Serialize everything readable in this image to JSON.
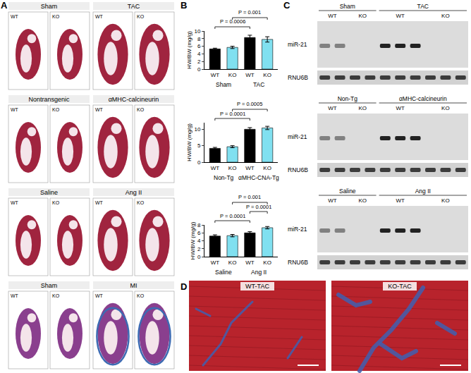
{
  "chart_data": [
    {
      "type": "bar",
      "ylabel": "HW/BW (mg/g)",
      "categories": [
        "WT",
        "KO",
        "WT",
        "KO"
      ],
      "group_labels": [
        "Sham",
        "TAC"
      ],
      "values": [
        5.3,
        5.7,
        8.3,
        7.8
      ],
      "error": [
        0.2,
        0.3,
        0.6,
        0.7
      ],
      "colors": [
        "#000000",
        "#80e0f0",
        "#000000",
        "#80e0f0"
      ],
      "ylim": [
        0,
        10
      ],
      "yticks": [
        0,
        2,
        4,
        6,
        8,
        10
      ],
      "grid": false,
      "comparisons": [
        {
          "between": [
            0,
            2
          ],
          "label": "P = 0.0006"
        },
        {
          "between": [
            1,
            3
          ],
          "label": "P = 0.001"
        }
      ]
    },
    {
      "type": "bar",
      "ylabel": "HW/BW (mg/g)",
      "categories": [
        "WT",
        "KO",
        "WT",
        "KO"
      ],
      "group_labels": [
        "Non-Tg",
        "αMHC-CNA-Tg"
      ],
      "values": [
        4.2,
        4.7,
        10.0,
        10.4
      ],
      "error": [
        0.3,
        0.3,
        0.5,
        0.5
      ],
      "colors": [
        "#000000",
        "#80e0f0",
        "#000000",
        "#80e0f0"
      ],
      "ylim": [
        0,
        12
      ],
      "yticks": [
        0,
        5,
        10
      ],
      "grid": false,
      "comparisons": [
        {
          "between": [
            0,
            2
          ],
          "label": "P = 0.0001"
        },
        {
          "between": [
            1,
            3
          ],
          "label": "P = 0.0005"
        }
      ]
    },
    {
      "type": "bar",
      "ylabel": "HW/BW (mg/g)",
      "categories": [
        "WT",
        "KO",
        "WT",
        "KO"
      ],
      "group_labels": [
        "Saline",
        "Ang II"
      ],
      "values": [
        5.2,
        5.3,
        6.0,
        7.3
      ],
      "error": [
        0.3,
        0.3,
        0.3,
        0.3
      ],
      "colors": [
        "#000000",
        "#80e0f0",
        "#000000",
        "#80e0f0"
      ],
      "ylim": [
        0,
        8
      ],
      "yticks": [
        0,
        2,
        4,
        6,
        8
      ],
      "grid": false,
      "comparisons": [
        {
          "between": [
            0,
            2
          ],
          "label": "P = 0.0001"
        },
        {
          "between": [
            2,
            3
          ],
          "label": "P = 0.0001"
        },
        {
          "between": [
            1,
            3
          ],
          "label": "P = 0.001"
        }
      ]
    }
  ],
  "figure": {
    "panel_A": {
      "letter": "A",
      "genotypes": [
        "WT",
        "KO"
      ],
      "rows": [
        [
          "Sham",
          "TAC"
        ],
        [
          "Nontransgenic",
          "αMHC-calcineurin"
        ],
        [
          "Saline",
          "Ang II"
        ],
        [
          "Sham",
          "MI"
        ]
      ]
    },
    "panel_B": {
      "letter": "B"
    },
    "panel_C": {
      "letter": "C",
      "probes": [
        "miR-21",
        "RNU6B"
      ],
      "blots": [
        [
          {
            "label": "Sham",
            "groups": [
              {
                "label": "WT",
                "lanes": 2
              },
              {
                "label": "KO",
                "lanes": 2
              }
            ]
          },
          {
            "label": "TAC",
            "groups": [
              {
                "label": "WT",
                "lanes": 3
              },
              {
                "label": "KO",
                "lanes": 3
              }
            ]
          }
        ],
        [
          {
            "label": "Non-Tg",
            "groups": [
              {
                "label": "WT",
                "lanes": 2
              },
              {
                "label": "KO",
                "lanes": 2
              }
            ]
          },
          {
            "label": "αMHC-calcineurin",
            "groups": [
              {
                "label": "WT",
                "lanes": 3
              },
              {
                "label": "KO",
                "lanes": 3
              }
            ]
          }
        ],
        [
          {
            "label": "Saline",
            "groups": [
              {
                "label": "WT",
                "lanes": 2
              },
              {
                "label": "KO",
                "lanes": 2
              }
            ]
          },
          {
            "label": "Ang II",
            "groups": [
              {
                "label": "WT",
                "lanes": 3
              },
              {
                "label": "KO",
                "lanes": 3
              }
            ]
          }
        ]
      ]
    },
    "panel_D": {
      "letter": "D",
      "images": [
        "WT-TAC",
        "KO-TAC"
      ]
    }
  }
}
